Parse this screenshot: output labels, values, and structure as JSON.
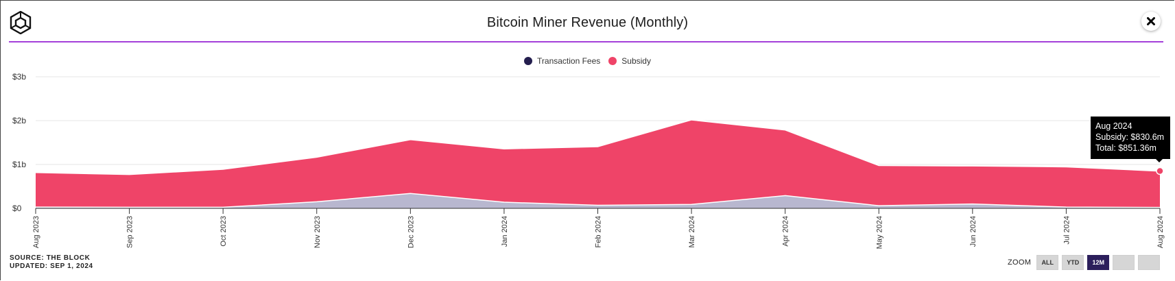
{
  "title": "Bitcoin Miner Revenue (Monthly)",
  "colors": {
    "accent_rule": "#a43fd9",
    "subsidy": "#ef4468",
    "fees": "#241e4e",
    "fees_area": "#b8b7cf"
  },
  "legend": [
    {
      "label": "Transaction Fees",
      "color": "#241e4e"
    },
    {
      "label": "Subsidy",
      "color": "#ef4468"
    }
  ],
  "tooltip": {
    "date": "Aug 2024",
    "subsidy": "Subsidy: $830.6m",
    "total": "Total: $851.36m"
  },
  "footer": {
    "source": "SOURCE: THE BLOCK",
    "updated": "UPDATED: SEP 1, 2024"
  },
  "zoom": {
    "label": "ZOOM",
    "buttons": [
      "ALL",
      "YTD",
      "12M",
      "",
      ""
    ],
    "active": "12M"
  },
  "icons": {
    "logo": "the-block-logo-icon",
    "close": "close-icon"
  },
  "chart_data": {
    "type": "area",
    "stacked": true,
    "title": "Bitcoin Miner Revenue (Monthly)",
    "x": [
      "Aug 2023",
      "Sep 2023",
      "Oct 2023",
      "Nov 2023",
      "Dec 2023",
      "Jan 2024",
      "Feb 2024",
      "Mar 2024",
      "Apr 2024",
      "May 2024",
      "Jun 2024",
      "Jul 2024",
      "Aug 2024"
    ],
    "ytick_labels": [
      "$0",
      "$1b",
      "$2b",
      "$3b"
    ],
    "yticks": [
      0,
      1000,
      2000,
      3000
    ],
    "ylim": [
      0,
      3000
    ],
    "y_unit": "$m",
    "series": [
      {
        "name": "Transaction Fees",
        "values": [
          30,
          25,
          25,
          150,
          340,
          140,
          70,
          90,
          290,
          60,
          100,
          30,
          21
        ]
      },
      {
        "name": "Subsidy",
        "values": [
          790,
          750,
          870,
          1020,
          1230,
          1220,
          1340,
          1930,
          1500,
          920,
          870,
          920,
          831
        ]
      }
    ],
    "grid": true,
    "legend_position": "top-center"
  }
}
